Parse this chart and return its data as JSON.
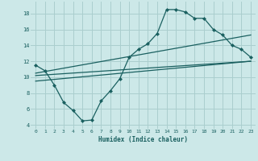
{
  "xlabel": "Humidex (Indice chaleur)",
  "background_color": "#cce8e8",
  "grid_color": "#aacece",
  "line_color": "#1a6060",
  "xlim": [
    -0.5,
    23.5
  ],
  "ylim": [
    3.5,
    19.5
  ],
  "yticks": [
    4,
    6,
    8,
    10,
    12,
    14,
    16,
    18
  ],
  "xticks": [
    0,
    1,
    2,
    3,
    4,
    5,
    6,
    7,
    8,
    9,
    10,
    11,
    12,
    13,
    14,
    15,
    16,
    17,
    18,
    19,
    20,
    21,
    22,
    23
  ],
  "line1_x": [
    0,
    1,
    2,
    3,
    4,
    5,
    6,
    7,
    8,
    9,
    10,
    11,
    12,
    13,
    14,
    15,
    16,
    17,
    18,
    19,
    20,
    21,
    22,
    23
  ],
  "line1_y": [
    11.5,
    10.8,
    9.0,
    6.8,
    5.8,
    4.5,
    4.6,
    7.0,
    8.3,
    9.8,
    12.5,
    13.5,
    14.2,
    15.5,
    18.5,
    18.5,
    18.2,
    17.4,
    17.4,
    16.0,
    15.3,
    14.0,
    13.5,
    12.5
  ],
  "line2_x": [
    0,
    23
  ],
  "line2_y": [
    10.2,
    12.0
  ],
  "line3_x": [
    0,
    23
  ],
  "line3_y": [
    10.5,
    15.3
  ],
  "line4_x": [
    0,
    23
  ],
  "line4_y": [
    9.5,
    12.0
  ]
}
